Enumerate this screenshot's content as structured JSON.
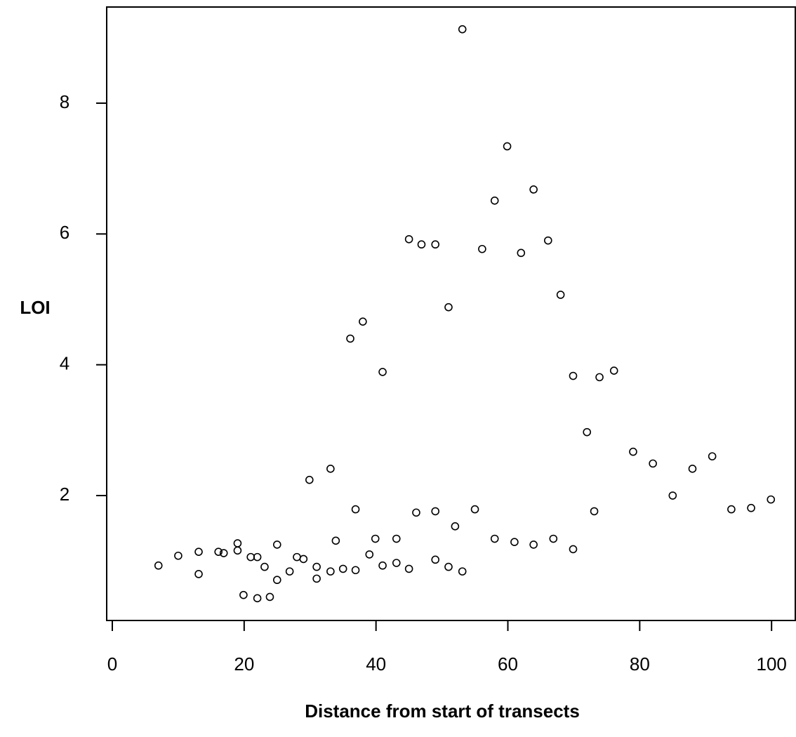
{
  "chart_data": {
    "type": "scatter",
    "xlabel": "Distance from start of transects",
    "ylabel": "LOI",
    "xlim": [
      -0.85,
      103.6
    ],
    "ylim": [
      0.09,
      9.47
    ],
    "xticks": [
      0,
      20,
      40,
      60,
      80,
      100
    ],
    "yticks": [
      2,
      4,
      6,
      8
    ],
    "color": "#000000",
    "series": [
      {
        "name": "LOI",
        "x": [
          7,
          10,
          13.1,
          13.1,
          16.1,
          16.9,
          19,
          19,
          19.9,
          21,
          22,
          22,
          23.1,
          23.9,
          25,
          25,
          26.9,
          28,
          29,
          29.9,
          31,
          31,
          33.1,
          33.1,
          33.9,
          35,
          36.1,
          36.9,
          36.9,
          38,
          39,
          39.9,
          41,
          41,
          43.1,
          43.1,
          45,
          45,
          46.1,
          46.9,
          49,
          49,
          49,
          51,
          51,
          52,
          53.1,
          53.1,
          55,
          56.1,
          58,
          58,
          59.9,
          61,
          62,
          63.9,
          63.9,
          66.1,
          66.9,
          68,
          69.9,
          69.9,
          72,
          73.1,
          73.9,
          76.1,
          79,
          82,
          85,
          88,
          91,
          93.9,
          96.9,
          99.9
        ],
        "values": [
          0.93,
          1.08,
          1.14,
          0.8,
          1.14,
          1.12,
          1.27,
          1.16,
          0.48,
          1.06,
          1.06,
          0.43,
          0.91,
          0.45,
          1.25,
          0.71,
          0.84,
          1.06,
          1.03,
          2.24,
          0.91,
          0.73,
          2.41,
          0.84,
          1.31,
          0.88,
          4.4,
          1.79,
          0.86,
          4.66,
          1.1,
          1.34,
          3.89,
          0.93,
          1.34,
          0.97,
          5.92,
          0.88,
          1.74,
          5.84,
          5.84,
          1.76,
          1.02,
          4.88,
          0.91,
          1.53,
          9.13,
          0.84,
          1.79,
          5.77,
          6.51,
          1.34,
          7.34,
          1.29,
          5.71,
          6.68,
          1.25,
          5.9,
          1.34,
          5.07,
          3.83,
          1.18,
          2.97,
          1.76,
          3.81,
          3.91,
          2.67,
          2.49,
          2.0,
          2.41,
          2.6,
          1.79,
          1.81,
          1.94
        ]
      }
    ]
  }
}
